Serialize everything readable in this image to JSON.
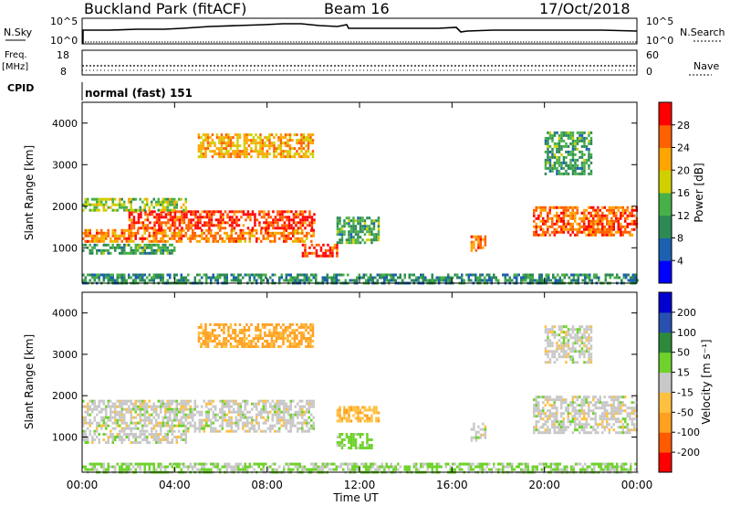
{
  "header": {
    "title": "Buckland Park (fitACF)",
    "beam": "Beam 16",
    "date": "17/Oct/2018"
  },
  "noise_panel": {
    "left_label": "N.Sky",
    "right_label": "N.Search",
    "left_ticks": [
      "10^5",
      "10^0"
    ],
    "right_ticks": [
      "10^5",
      "10^0"
    ]
  },
  "freq_panel": {
    "left_label_1": "Freq.",
    "left_label_2": "[MHz]",
    "right_label": "Nave",
    "left_ticks": [
      "18",
      "8"
    ],
    "right_ticks": [
      "60",
      "0"
    ]
  },
  "cpid": {
    "label": "CPID",
    "value": "normal (fast) 151"
  },
  "colors": {
    "power": [
      "#0000ff",
      "#1c60b0",
      "#2e8a55",
      "#48b048",
      "#d0d000",
      "#ffa500",
      "#ff6000",
      "#ff0000"
    ],
    "velocity": [
      "#ff0000",
      "#ff5a00",
      "#ffa020",
      "#ffc040",
      "#c8c8c8",
      "#6ed22a",
      "#2e8a3a",
      "#2850b0",
      "#0000d0"
    ]
  },
  "chart_data": [
    {
      "type": "heatmap",
      "title": "",
      "xlabel": "",
      "ylabel": "Slant Range [km]",
      "colorbar_label": "Power [dB]",
      "xlim": [
        0,
        24
      ],
      "ylim": [
        150,
        4500
      ],
      "yticks": [
        "1000",
        "2000",
        "3000",
        "4000"
      ],
      "colorbar_ticks": [
        "4",
        "8",
        "12",
        "16",
        "20",
        "24",
        "28"
      ],
      "colorbar_range": [
        0,
        32
      ],
      "regions": [
        {
          "t0": 0.0,
          "t1": 10.0,
          "r0": 1150,
          "r1": 1450,
          "value": 24
        },
        {
          "t0": 2.0,
          "t1": 10.0,
          "r0": 1450,
          "r1": 1900,
          "value": 28
        },
        {
          "t0": 0.0,
          "t1": 4.5,
          "r0": 1900,
          "r1": 2200,
          "value": 16
        },
        {
          "t0": 0.0,
          "t1": 4.0,
          "r0": 850,
          "r1": 1100,
          "value": 12
        },
        {
          "t0": 5.0,
          "t1": 10.0,
          "r0": 3200,
          "r1": 3750,
          "value": 22
        },
        {
          "t0": 9.5,
          "t1": 11.0,
          "r0": 800,
          "r1": 1100,
          "value": 28
        },
        {
          "t0": 11.0,
          "t1": 12.8,
          "r0": 1100,
          "r1": 1750,
          "value": 12
        },
        {
          "t0": 16.8,
          "t1": 17.4,
          "r0": 950,
          "r1": 1300,
          "value": 26
        },
        {
          "t0": 19.5,
          "t1": 24.0,
          "r0": 1300,
          "r1": 2000,
          "value": 26
        },
        {
          "t0": 20.0,
          "t1": 22.0,
          "r0": 2800,
          "r1": 3800,
          "value": 12
        },
        {
          "t0": 0.0,
          "t1": 24.0,
          "r0": 150,
          "r1": 380,
          "value": 10
        }
      ]
    },
    {
      "type": "heatmap",
      "title": "",
      "xlabel": "Time UT",
      "ylabel": "Slant Range [km]",
      "colorbar_label": "Velocity [m s⁻¹]",
      "xlim": [
        0,
        24
      ],
      "ylim": [
        150,
        4500
      ],
      "yticks": [
        "1000",
        "2000",
        "3000",
        "4000"
      ],
      "xticks": [
        "00:00",
        "04:00",
        "08:00",
        "12:00",
        "16:00",
        "20:00",
        "00:00"
      ],
      "colorbar_ticks": [
        "-200",
        "-100",
        "-50",
        "-15",
        "15",
        "50",
        "100",
        "200"
      ],
      "regions": [
        {
          "t0": 0.0,
          "t1": 10.0,
          "r0": 1150,
          "r1": 1900,
          "value": 0
        },
        {
          "t0": 0.0,
          "t1": 4.5,
          "r0": 850,
          "r1": 1100,
          "value": 0
        },
        {
          "t0": 5.0,
          "t1": 10.0,
          "r0": 3200,
          "r1": 3750,
          "value": -60
        },
        {
          "t0": 11.0,
          "t1": 12.8,
          "r0": 1400,
          "r1": 1750,
          "value": -40
        },
        {
          "t0": 11.0,
          "t1": 12.5,
          "r0": 750,
          "r1": 1100,
          "value": 30
        },
        {
          "t0": 16.8,
          "t1": 17.4,
          "r0": 950,
          "r1": 1350,
          "value": 0
        },
        {
          "t0": 19.5,
          "t1": 24.0,
          "r0": 1100,
          "r1": 2000,
          "value": 0
        },
        {
          "t0": 20.0,
          "t1": 22.0,
          "r0": 2800,
          "r1": 3700,
          "value": 0
        },
        {
          "t0": 0.0,
          "t1": 24.0,
          "r0": 150,
          "r1": 380,
          "value": 20
        }
      ]
    }
  ]
}
